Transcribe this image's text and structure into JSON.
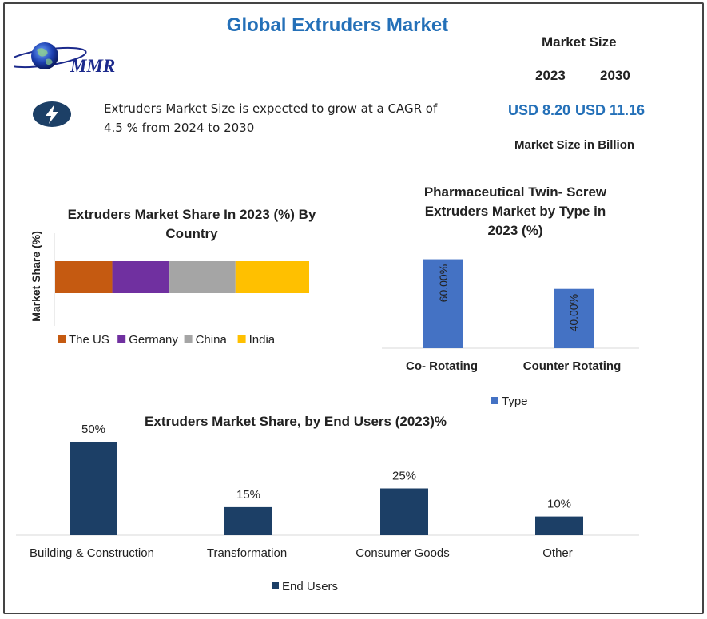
{
  "title": "Global Extruders Market",
  "logo": {
    "text": "MMR"
  },
  "cagr_text": "Extruders Market Size is expected to grow at a CAGR of 4.5 % from 2024 to 2030",
  "market_size": {
    "heading": "Market Size",
    "years": [
      "2023",
      "2030"
    ],
    "values": [
      "USD 8.20",
      "USD 11.16"
    ],
    "unit_note": "Market Size in Billion"
  },
  "chart_data": [
    {
      "type": "bar",
      "stacked": true,
      "orientation": "horizontal",
      "title": "Extruders Market Share In 2023 (%) By Country",
      "ylabel": "Market Share (%)",
      "series": [
        {
          "name": "The US",
          "values": [
            22.5
          ],
          "color": "#c55a11"
        },
        {
          "name": "Germany",
          "values": [
            22.5
          ],
          "color": "#7030a0"
        },
        {
          "name": "China",
          "values": [
            26
          ],
          "color": "#a5a5a5"
        },
        {
          "name": "India",
          "values": [
            29
          ],
          "color": "#ffc000"
        }
      ],
      "legend": "bottom"
    },
    {
      "type": "bar",
      "title": "Pharmaceutical Twin- Screw Extruders Market by Type in 2023 (%)",
      "categories": [
        "Co- Rotating",
        "Counter Rotating"
      ],
      "series": [
        {
          "name": "Type",
          "values": [
            60,
            40
          ],
          "labels": [
            "60.00%",
            "40.00%"
          ],
          "color": "#4472c4"
        }
      ],
      "ylim": [
        0,
        70
      ],
      "legend": "bottom"
    },
    {
      "type": "bar",
      "title": "Extruders Market Share, by End Users  (2023)%",
      "categories": [
        "Building & Construction",
        "Transformation",
        "Consumer Goods",
        "Other"
      ],
      "series": [
        {
          "name": "End Users",
          "values": [
            50,
            15,
            25,
            10
          ],
          "labels": [
            "50%",
            "15%",
            "25%",
            "10%"
          ],
          "color": "#1c3f66"
        }
      ],
      "ylim": [
        0,
        52
      ],
      "legend": "bottom"
    }
  ]
}
